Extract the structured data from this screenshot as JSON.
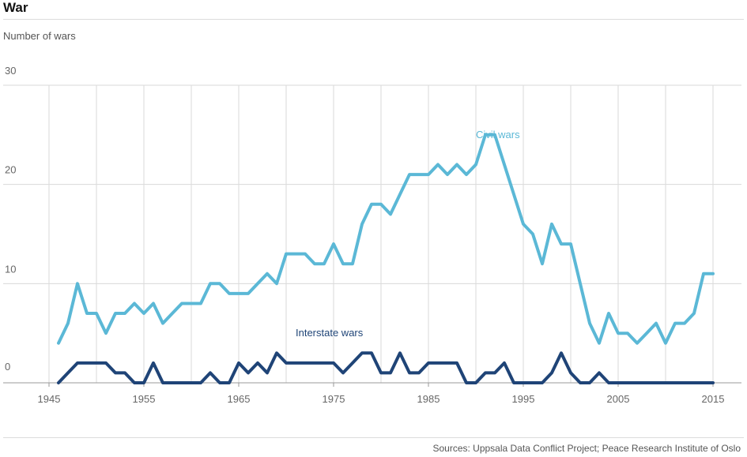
{
  "header": {
    "title": "War",
    "ylabel": "Number of wars",
    "source": "Sources: Uppsala Data Conflict Project; Peace Research Institute of Oslo"
  },
  "colors": {
    "civil": "#5bb8d6",
    "interstate": "#1f4477",
    "grid": "#dadada",
    "axis": "#999999"
  },
  "chart_data": {
    "type": "line",
    "title": "War",
    "ylabel": "Number of wars",
    "xlim": [
      1944,
      2018
    ],
    "ylim": [
      0,
      30
    ],
    "x_ticks": [
      1945,
      1955,
      1965,
      1975,
      1985,
      1995,
      2005,
      2015
    ],
    "y_ticks": [
      0,
      10,
      20,
      30
    ],
    "grid": true,
    "series": [
      {
        "name": "Civil wars",
        "color": "#5bb8d6",
        "label_at": [
          1990,
          25
        ],
        "x": [
          1946,
          1947,
          1948,
          1949,
          1950,
          1951,
          1952,
          1953,
          1954,
          1955,
          1956,
          1957,
          1958,
          1959,
          1960,
          1961,
          1962,
          1963,
          1964,
          1965,
          1966,
          1967,
          1968,
          1969,
          1970,
          1971,
          1972,
          1973,
          1974,
          1975,
          1976,
          1977,
          1978,
          1979,
          1980,
          1981,
          1982,
          1983,
          1984,
          1985,
          1986,
          1987,
          1988,
          1989,
          1990,
          1991,
          1992,
          1993,
          1994,
          1995,
          1996,
          1997,
          1998,
          1999,
          2000,
          2001,
          2002,
          2003,
          2004,
          2005,
          2006,
          2007,
          2008,
          2009,
          2010,
          2011,
          2012,
          2013,
          2014,
          2015
        ],
        "values": [
          4,
          6,
          10,
          7,
          7,
          5,
          7,
          7,
          8,
          7,
          8,
          6,
          7,
          8,
          8,
          8,
          10,
          10,
          9,
          9,
          9,
          10,
          11,
          10,
          13,
          13,
          13,
          12,
          12,
          14,
          12,
          12,
          16,
          18,
          18,
          17,
          19,
          21,
          21,
          21,
          22,
          21,
          22,
          21,
          22,
          25,
          25,
          22,
          19,
          16,
          15,
          12,
          16,
          14,
          14,
          10,
          6,
          4,
          7,
          5,
          5,
          4,
          5,
          6,
          4,
          6,
          6,
          7,
          11,
          11
        ]
      },
      {
        "name": "Interstate wars",
        "color": "#1f4477",
        "label_at": [
          1971,
          5
        ],
        "x": [
          1946,
          1947,
          1948,
          1949,
          1950,
          1951,
          1952,
          1953,
          1954,
          1955,
          1956,
          1957,
          1958,
          1959,
          1960,
          1961,
          1962,
          1963,
          1964,
          1965,
          1966,
          1967,
          1968,
          1969,
          1970,
          1971,
          1972,
          1973,
          1974,
          1975,
          1976,
          1977,
          1978,
          1979,
          1980,
          1981,
          1982,
          1983,
          1984,
          1985,
          1986,
          1987,
          1988,
          1989,
          1990,
          1991,
          1992,
          1993,
          1994,
          1995,
          1996,
          1997,
          1998,
          1999,
          2000,
          2001,
          2002,
          2003,
          2004,
          2005,
          2006,
          2007,
          2008,
          2009,
          2010,
          2011,
          2012,
          2013,
          2014,
          2015
        ],
        "values": [
          0,
          1,
          2,
          2,
          2,
          2,
          1,
          1,
          0,
          0,
          2,
          0,
          0,
          0,
          0,
          0,
          1,
          0,
          0,
          2,
          1,
          2,
          1,
          3,
          2,
          2,
          2,
          2,
          2,
          2,
          1,
          2,
          3,
          3,
          1,
          1,
          3,
          1,
          1,
          2,
          2,
          2,
          2,
          0,
          0,
          1,
          1,
          2,
          0,
          0,
          0,
          0,
          1,
          3,
          1,
          0,
          0,
          1,
          0,
          0,
          0,
          0,
          0,
          0,
          0,
          0,
          0,
          0,
          0,
          0
        ]
      }
    ]
  }
}
